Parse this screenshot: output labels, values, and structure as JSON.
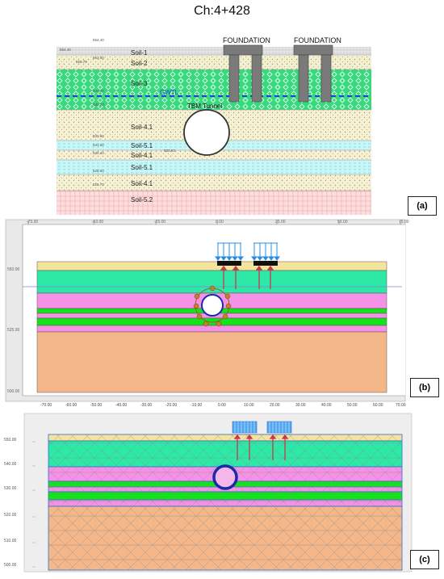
{
  "title": "Ch:4+428",
  "panel_a": {
    "label": "(a)",
    "soil_labels": [
      "Soil-1",
      "Soil-2",
      "Soil-3",
      "Soil-4.1",
      "Soil-5.1",
      "Soil-4.1",
      "Soil-5.1",
      "Soil-4.1",
      "Soil-5.2"
    ],
    "foundation_label_1": "FOUNDATION",
    "foundation_label_2": "FOUNDATION",
    "gwtl_label": "GWTL",
    "tunnel_label": "TBM Tunnel",
    "elevation_marks": [
      "554.40",
      "554.40",
      "553.00",
      "550.70",
      "544.20",
      "542.50",
      "533.60",
      "531.60",
      "530.40",
      "532.63",
      "528.60",
      "525.70"
    ]
  },
  "panel_b": {
    "label": "(b)",
    "top_axis_ticks": [
      "-75.00",
      "-50.00",
      "-25.00",
      "0.00",
      "25.00",
      "50.00",
      "75.00"
    ],
    "left_axis_ticks": [
      "550.00",
      "525.00",
      "500.00"
    ],
    "bottom_axis_ticks": [
      "-70.00",
      "-60.00",
      "-50.00",
      "-40.00",
      "-30.00",
      "-20.00",
      "-10.00",
      "0.00",
      "10.00",
      "20.00",
      "30.00",
      "40.00",
      "50.00",
      "60.00",
      "70.00"
    ]
  },
  "panel_c": {
    "label": "(c)",
    "left_axis_ticks": [
      "550.00",
      "540.00",
      "530.00",
      "520.00",
      "510.00",
      "500.00"
    ]
  },
  "colors": {
    "soil_1": "#d9d9d9",
    "soil_3": "#32e07a",
    "soil_4_1": "#f2ecc8",
    "soil_5_1": "#b9f4f4",
    "soil_5_2": "#f8d0d0",
    "plaxis_yellow": "#f4e39b",
    "plaxis_teal": "#2ee8a7",
    "plaxis_pink": "#f592e6",
    "plaxis_green": "#15e31a",
    "plaxis_orange": "#f3b78a",
    "load_blue": "#2a8de0",
    "anchor_red": "#c8384a"
  }
}
